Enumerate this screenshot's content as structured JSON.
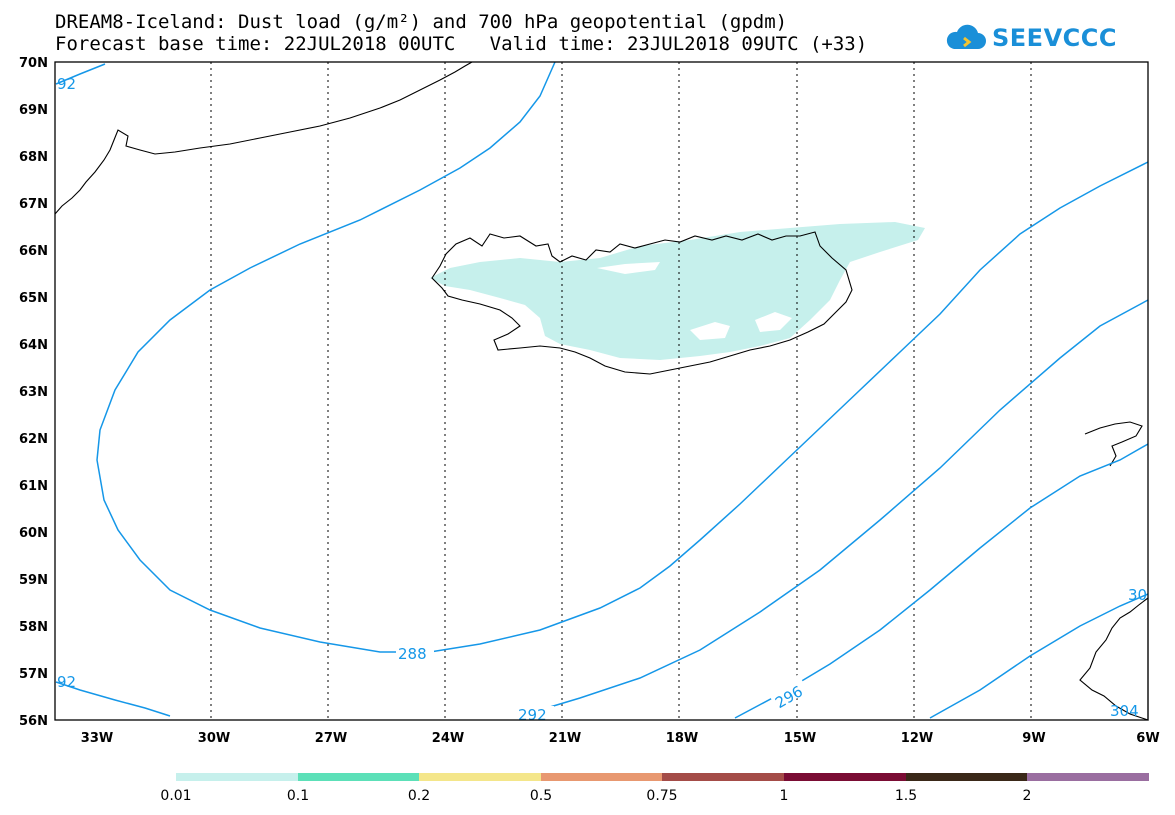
{
  "title": {
    "line1": "DREAM8-Iceland: Dust load (g/m²) and 700 hPa geopotential (gpdm)",
    "line2": "Forecast base time: 22JUL2018 00UTC   Valid time: 23JUL2018 09UTC (+33)"
  },
  "logo": {
    "text": "SEEVCCC",
    "icon": "cloud-icon"
  },
  "map": {
    "lon_labels": [
      "33W",
      "30W",
      "27W",
      "24W",
      "21W",
      "18W",
      "15W",
      "12W",
      "9W",
      "6W"
    ],
    "lat_labels": [
      "70N",
      "69N",
      "68N",
      "67N",
      "66N",
      "65N",
      "64N",
      "63N",
      "62N",
      "61N",
      "60N",
      "59N",
      "58N",
      "57N",
      "56N"
    ],
    "contour_labels": [
      "92",
      "288",
      "292",
      "296",
      "30",
      "92",
      "304"
    ],
    "contour_color": "#1597e8",
    "dust_color": "#c6f0ec"
  },
  "colorbar": {
    "labels": [
      "0.01",
      "0.1",
      "0.2",
      "0.5",
      "0.75",
      "1",
      "1.5",
      "2"
    ],
    "colors": [
      "#c6f0ec",
      "#5ce0b8",
      "#f4e68a",
      "#e89870",
      "#a44c48",
      "#7a0c34",
      "#3a2818",
      "#9a6ea0"
    ]
  }
}
